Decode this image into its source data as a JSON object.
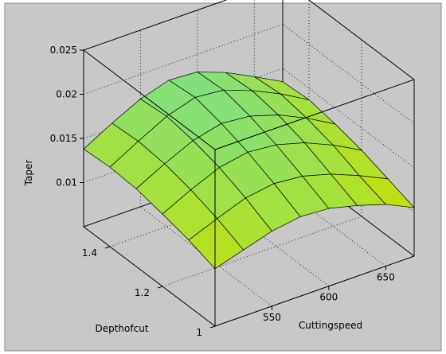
{
  "window": {
    "background_color": "#ffffff",
    "figure_color": "#c8c8c8",
    "frame_color": "#888888"
  },
  "chart_data": {
    "type": "surface",
    "title": "",
    "xlabel": "Cuttingspeed",
    "ylabel": "Depthofcut",
    "zlabel": "Taper",
    "xlim": [
      500,
      675
    ],
    "ylim": [
      1.0,
      1.5
    ],
    "zlim": [
      0.005,
      0.025
    ],
    "xticks": [
      550,
      600,
      650
    ],
    "yticks": [
      1,
      1.2,
      1.4
    ],
    "zticks": [
      0.01,
      0.015,
      0.02,
      0.025
    ],
    "xtick_labels": [
      "550",
      "600",
      "650"
    ],
    "ytick_labels": [
      "1",
      "1.2",
      "1.4"
    ],
    "ztick_labels": [
      "0.01",
      "0.015",
      "0.02",
      "0.025"
    ],
    "grid": true,
    "surface_color_low": "#c8e000",
    "surface_color_high": "#7fe07f",
    "grid_x": [
      500,
      525,
      550,
      575,
      600,
      625,
      650,
      675
    ],
    "grid_y": [
      1.0,
      1.1,
      1.2,
      1.3,
      1.4,
      1.5
    ],
    "z": [
      [
        0.0115,
        0.0125,
        0.0135,
        0.014,
        0.0138,
        0.013,
        0.012,
        0.0105
      ],
      [
        0.0125,
        0.0138,
        0.015,
        0.0155,
        0.0152,
        0.0143,
        0.013,
        0.0115
      ],
      [
        0.0132,
        0.0148,
        0.0162,
        0.0168,
        0.0165,
        0.0156,
        0.0142,
        0.0125
      ],
      [
        0.0138,
        0.0155,
        0.017,
        0.0178,
        0.0175,
        0.0165,
        0.015,
        0.0132
      ],
      [
        0.014,
        0.0158,
        0.0175,
        0.0185,
        0.0182,
        0.017,
        0.0155,
        0.0137
      ],
      [
        0.0138,
        0.0156,
        0.0172,
        0.0182,
        0.018,
        0.0168,
        0.0152,
        0.0135
      ]
    ]
  }
}
